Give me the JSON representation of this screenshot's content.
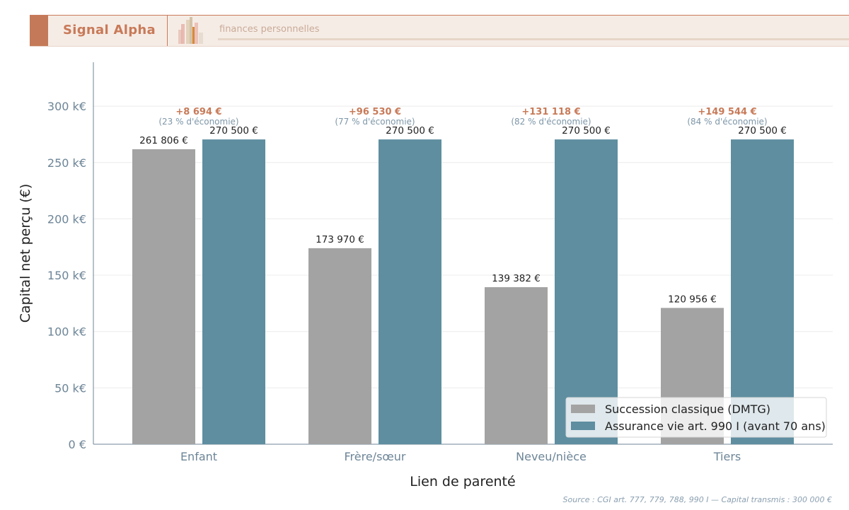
{
  "header": {
    "brand": "Signal Alpha",
    "tagline": "finances personnelles"
  },
  "colors": {
    "classique": "#a3a3a3",
    "assurance": "#5e8ea0",
    "accent": "#c87a58",
    "axis": "#6d8597"
  },
  "chart_data": {
    "type": "bar",
    "xlabel": "Lien de parenté",
    "ylabel": "Capital net perçu (€)",
    "ylim": [
      0,
      339000
    ],
    "yticks": [
      0,
      50000,
      100000,
      150000,
      200000,
      250000,
      300000
    ],
    "ytick_labels": [
      "0 €",
      "50 k€",
      "100 k€",
      "150 k€",
      "200 k€",
      "250 k€",
      "300 k€"
    ],
    "grid": "horizontal",
    "legend": "bottom-right",
    "categories": [
      "Enfant",
      "Frère/sœur",
      "Neveu/nièce",
      "Tiers"
    ],
    "series": [
      {
        "name": "Succession classique (DMTG)",
        "values": [
          261806,
          173970,
          139382,
          120956
        ],
        "labels": [
          "261 806 €",
          "173 970 €",
          "139 382 €",
          "120 956 €"
        ]
      },
      {
        "name": "Assurance vie art. 990 I (avant 70 ans)",
        "values": [
          270500,
          270500,
          270500,
          270500
        ],
        "labels": [
          "270 500 €",
          "270 500 €",
          "270 500 €",
          "270 500 €"
        ]
      }
    ],
    "annotations": [
      {
        "gain": "+8 694 €",
        "pct": "(23 % d'économie)"
      },
      {
        "gain": "+96 530 €",
        "pct": "(77 % d'économie)"
      },
      {
        "gain": "+131 118 €",
        "pct": "(82 % d'économie)"
      },
      {
        "gain": "+149 544 €",
        "pct": "(84 % d'économie)"
      }
    ]
  },
  "source": "Source : CGI art. 777, 779, 788, 990 I — Capital transmis : 300 000 €"
}
